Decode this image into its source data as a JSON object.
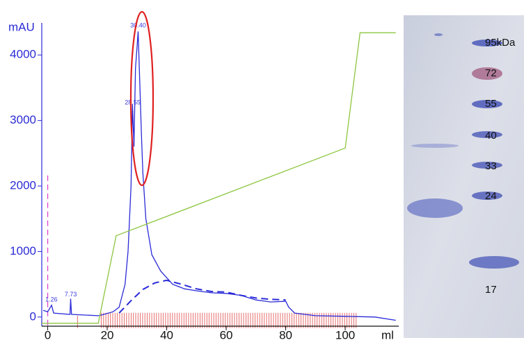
{
  "chart_data": {
    "type": "line",
    "y_label": "mAU",
    "x_label": "ml",
    "xlim": [
      -2,
      118
    ],
    "ylim": [
      -140,
      4490
    ],
    "xticks": [
      0,
      20,
      40,
      60,
      80,
      100
    ],
    "yticks": [
      0,
      1000,
      2000,
      3000,
      4000
    ],
    "series": [
      {
        "color": "#2a2ad8",
        "dash": false,
        "x": [
          -1.5,
          0,
          1.3,
          2,
          7.5,
          7.7,
          8,
          17,
          18,
          22,
          24,
          26,
          27,
          28,
          28.5,
          29,
          29.5,
          30,
          30.4,
          31,
          31.5,
          32,
          33,
          35,
          38,
          42,
          46,
          50,
          55,
          60,
          65,
          70,
          75,
          80,
          81,
          83,
          90,
          100,
          110,
          117
        ],
        "values": [
          100,
          80,
          180,
          60,
          40,
          280,
          40,
          20,
          30,
          80,
          150,
          500,
          1000,
          2000,
          3250,
          2600,
          3800,
          4100,
          4360,
          3500,
          2800,
          2200,
          1500,
          950,
          700,
          500,
          430,
          400,
          370,
          360,
          330,
          260,
          230,
          240,
          150,
          60,
          20,
          10,
          0,
          -50
        ]
      },
      {
        "color": "#2a2ad8",
        "dash": true,
        "x": [
          24,
          28,
          32,
          36,
          40,
          45,
          50,
          55,
          60,
          65,
          70,
          75,
          80
        ],
        "values": [
          60,
          250,
          420,
          520,
          560,
          500,
          430,
          390,
          380,
          330,
          290,
          270,
          260
        ]
      },
      {
        "color": "#8cc63f",
        "dash": false,
        "x": [
          -2,
          17,
          23,
          100,
          105,
          117
        ],
        "values": [
          -95,
          -95,
          1240,
          2580,
          4340,
          4340
        ]
      }
    ],
    "peaks": [
      1.26,
      7.73,
      28.55,
      {
        "value": 30.4,
        "label": "30.40"
      }
    ]
  },
  "gel": {
    "labels": [
      "95kDa",
      "72",
      "55",
      "40",
      "33",
      "24",
      "17"
    ]
  }
}
